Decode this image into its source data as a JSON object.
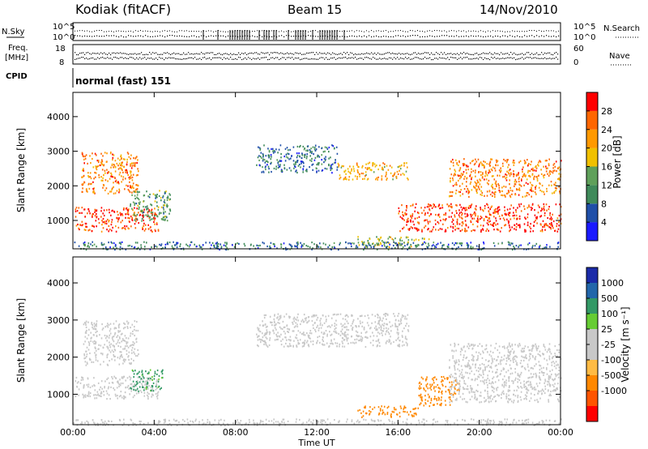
{
  "header": {
    "station": "Kodiak (fitACF)",
    "beam": "Beam 15",
    "date": "14/Nov/2010"
  },
  "panels": {
    "nsky_label": "N.Sky",
    "nsearch_label": "N.Search",
    "freq_label_1": "Freq.",
    "freq_label_2": "[MHz]",
    "nave_label": "Nave",
    "cpid_label": "CPID",
    "cpid_value": "normal (fast) 151",
    "noise_ticks": [
      "10^5",
      "10^0"
    ],
    "freq_ticks": [
      "18",
      "8"
    ],
    "nave_ticks": [
      "60",
      "0"
    ]
  },
  "colors": {
    "power_scale": [
      "#1a1aff",
      "#1f4fa8",
      "#3f8a5a",
      "#5fa05a",
      "#f0c000",
      "#ff9900",
      "#ff6600",
      "#ff0000"
    ],
    "velocity_scale": [
      "#ff0000",
      "#ff5500",
      "#ff8800",
      "#ffbb44",
      "#c8c8c8",
      "#c8c8c8",
      "#66cc33",
      "#339966",
      "#2266aa",
      "#1a2aa8"
    ]
  },
  "chart_data": [
    {
      "type": "heatmap",
      "title": "Power",
      "ylabel": "Slant Range [km]",
      "colorbar_label": "Power [dB]",
      "colorbar_ticks": [
        "4",
        "8",
        "12",
        "16",
        "20",
        "24",
        "28"
      ],
      "x_ticks": [
        "00:00",
        "04:00",
        "08:00",
        "12:00",
        "16:00",
        "20:00",
        "00:00"
      ],
      "y_ticks": [
        "1000",
        "2000",
        "3000",
        "4000"
      ],
      "xlim": [
        0,
        24
      ],
      "ylim": [
        180,
        4700
      ],
      "regions": [
        {
          "t0": 0.1,
          "t1": 4.2,
          "r0": 700,
          "r1": 1400,
          "value": 28
        },
        {
          "t0": 0.4,
          "t1": 3.2,
          "r0": 1800,
          "r1": 3000,
          "value": 24
        },
        {
          "t0": 2.8,
          "t1": 4.8,
          "r0": 1000,
          "r1": 1900,
          "value": 12
        },
        {
          "t0": 9.0,
          "t1": 13.0,
          "r0": 2400,
          "r1": 3200,
          "value": 8
        },
        {
          "t0": 13.0,
          "t1": 16.5,
          "r0": 2200,
          "r1": 2700,
          "value": 20
        },
        {
          "t0": 16.0,
          "t1": 24.0,
          "r0": 700,
          "r1": 1500,
          "value": 28
        },
        {
          "t0": 18.5,
          "t1": 24.0,
          "r0": 1700,
          "r1": 2800,
          "value": 24
        },
        {
          "t0": 14.0,
          "t1": 17.5,
          "r0": 250,
          "r1": 550,
          "value": 16
        },
        {
          "t0": 0.0,
          "t1": 24.0,
          "r0": 180,
          "r1": 400,
          "value": 8
        }
      ]
    },
    {
      "type": "heatmap",
      "title": "Velocity",
      "ylabel": "Slant Range [km]",
      "xlabel": "Time UT",
      "colorbar_label": "Velocity [m s⁻¹]",
      "colorbar_ticks": [
        "1000",
        "500",
        "100",
        "25",
        "-25",
        "-100",
        "-500",
        "-1000"
      ],
      "x_ticks": [
        "00:00",
        "04:00",
        "08:00",
        "12:00",
        "16:00",
        "20:00",
        "00:00"
      ],
      "y_ticks": [
        "1000",
        "2000",
        "3000",
        "4000"
      ],
      "xlim": [
        0,
        24
      ],
      "ylim": [
        180,
        4700
      ],
      "regions": [
        {
          "t0": 0.1,
          "t1": 4.2,
          "r0": 900,
          "r1": 1500,
          "value": 0
        },
        {
          "t0": 0.5,
          "t1": 3.2,
          "r0": 1800,
          "r1": 3000,
          "value": 0
        },
        {
          "t0": 2.8,
          "t1": 4.4,
          "r0": 1100,
          "r1": 1700,
          "value": 150
        },
        {
          "t0": 9.0,
          "t1": 16.5,
          "r0": 2300,
          "r1": 3200,
          "value": 0
        },
        {
          "t0": 14.0,
          "t1": 17.0,
          "r0": 400,
          "r1": 700,
          "value": -200
        },
        {
          "t0": 17.0,
          "t1": 19.0,
          "r0": 700,
          "r1": 1500,
          "value": -300
        },
        {
          "t0": 18.5,
          "t1": 24.0,
          "r0": 800,
          "r1": 2400,
          "value": 0
        },
        {
          "t0": 0.0,
          "t1": 24.0,
          "r0": 180,
          "r1": 350,
          "value": 0
        }
      ]
    }
  ]
}
